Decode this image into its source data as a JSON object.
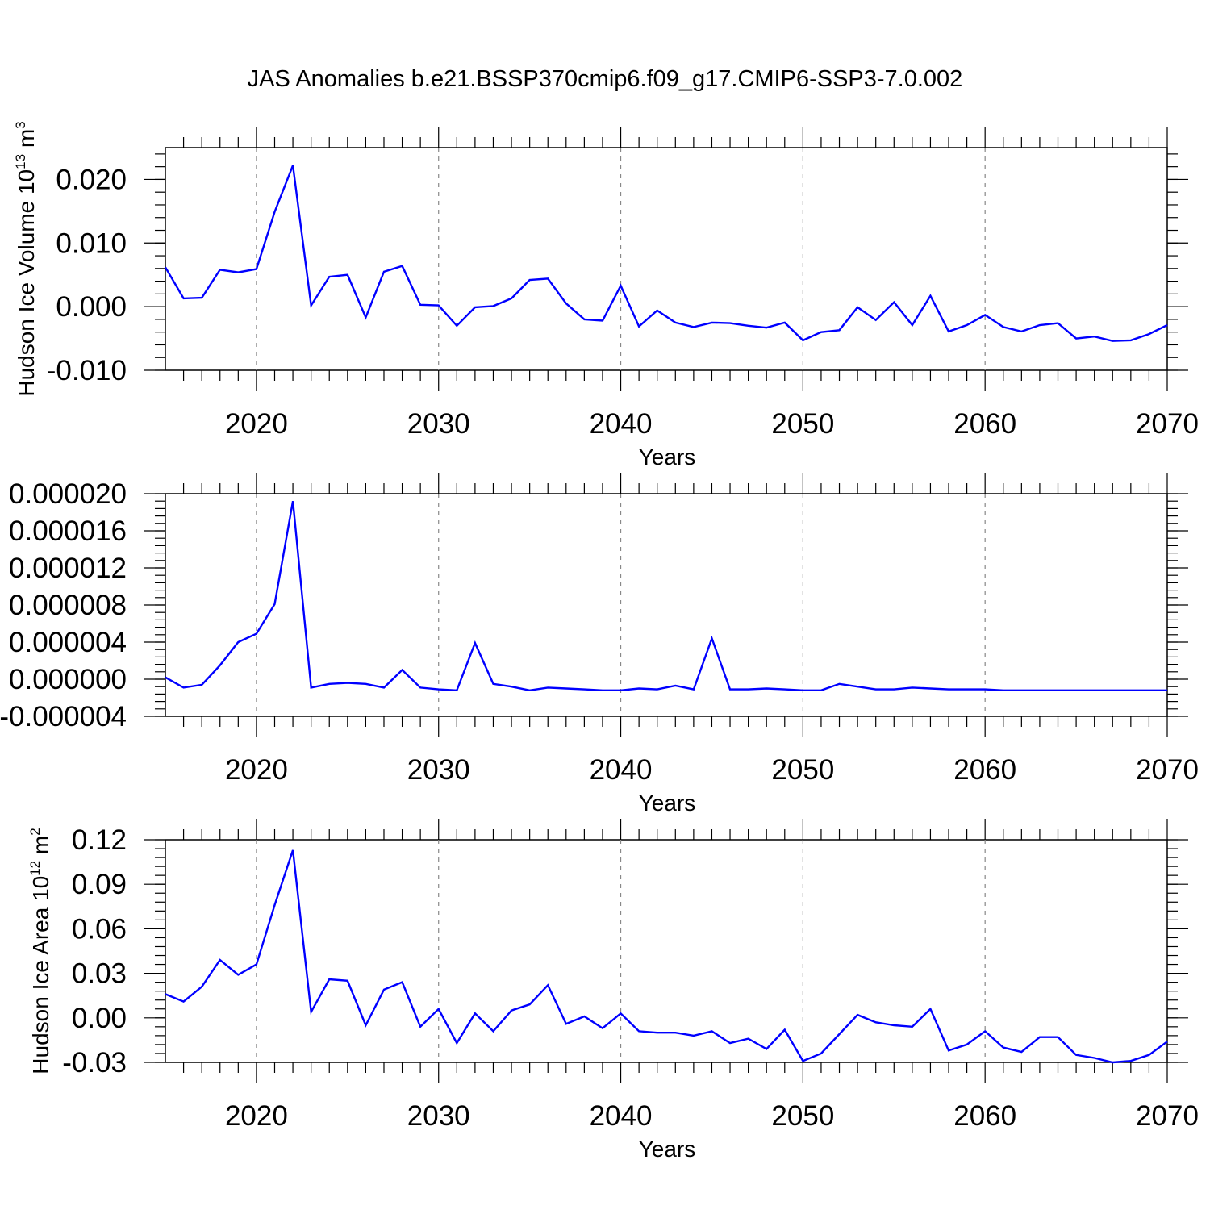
{
  "title": "JAS Anomalies b.e21.BSSP370cmip6.f09_g17.CMIP6-SSP3-7.0.002",
  "colors": {
    "line": "#0000ff",
    "axis": "#000000",
    "grid": "#888888"
  },
  "chart_data": [
    {
      "type": "line",
      "ylabel_main": "Hudson Ice Volume 10",
      "ylabel_sup": "13",
      "ylabel_unit": " m",
      "ylabel_unit_sup": "3",
      "xlabel": "Years",
      "xlim": [
        2015,
        2070
      ],
      "ylim": [
        -0.01,
        0.025
      ],
      "xticks": [
        2020,
        2030,
        2040,
        2050,
        2060,
        2070
      ],
      "xtick_labels": [
        "2020",
        "2030",
        "2040",
        "2050",
        "2060",
        "2070"
      ],
      "yticks": [
        -0.01,
        0.0,
        0.01,
        0.02
      ],
      "ytick_labels": [
        "-0.010",
        "0.000",
        "0.010",
        "0.020"
      ],
      "grid": "vertical dashed at major x ticks",
      "x": [
        2015,
        2016,
        2017,
        2018,
        2019,
        2020,
        2021,
        2022,
        2023,
        2024,
        2025,
        2026,
        2027,
        2028,
        2029,
        2030,
        2031,
        2032,
        2033,
        2034,
        2035,
        2036,
        2037,
        2038,
        2039,
        2040,
        2041,
        2042,
        2043,
        2044,
        2045,
        2046,
        2047,
        2048,
        2049,
        2050,
        2051,
        2052,
        2053,
        2054,
        2055,
        2056,
        2057,
        2058,
        2059,
        2060,
        2061,
        2062,
        2063,
        2064,
        2065,
        2066,
        2067,
        2068,
        2069,
        2070
      ],
      "values": [
        0.0062,
        0.0013,
        0.0014,
        0.0058,
        0.0054,
        0.0059,
        0.0149,
        0.0222,
        0.0002,
        0.0047,
        0.005,
        -0.0017,
        0.0055,
        0.0064,
        0.0003,
        0.0002,
        -0.003,
        -0.0001,
        0.0001,
        0.0013,
        0.0042,
        0.0044,
        0.0005,
        -0.002,
        -0.0022,
        0.0033,
        -0.0031,
        -0.0006,
        -0.0025,
        -0.0032,
        -0.0025,
        -0.0026,
        -0.003,
        -0.0033,
        -0.0025,
        -0.0053,
        -0.004,
        -0.0037,
        -0.0001,
        -0.0021,
        0.0007,
        -0.0029,
        0.0017,
        -0.0039,
        -0.0029,
        -0.0013,
        -0.0032,
        -0.0039,
        -0.0029,
        -0.0026,
        -0.005,
        -0.0047,
        -0.0054,
        -0.0053,
        -0.0043,
        -0.0029
      ]
    },
    {
      "type": "line",
      "xlabel": "Years",
      "xlim": [
        2015,
        2070
      ],
      "ylim": [
        -4e-06,
        2e-05
      ],
      "xticks": [
        2020,
        2030,
        2040,
        2050,
        2060,
        2070
      ],
      "xtick_labels": [
        "2020",
        "2030",
        "2040",
        "2050",
        "2060",
        "2070"
      ],
      "yticks": [
        -4e-06,
        0.0,
        4e-06,
        8e-06,
        1.2e-05,
        1.6e-05,
        2e-05
      ],
      "ytick_labels": [
        "-0.000004",
        "0.000000",
        "0.000004",
        "0.000008",
        "0.000012",
        "0.000016",
        "0.000020"
      ],
      "grid": "vertical dashed at major x ticks",
      "x": [
        2015,
        2016,
        2017,
        2018,
        2019,
        2020,
        2021,
        2022,
        2023,
        2024,
        2025,
        2026,
        2027,
        2028,
        2029,
        2030,
        2031,
        2032,
        2033,
        2034,
        2035,
        2036,
        2037,
        2038,
        2039,
        2040,
        2041,
        2042,
        2043,
        2044,
        2045,
        2046,
        2047,
        2048,
        2049,
        2050,
        2051,
        2052,
        2053,
        2054,
        2055,
        2056,
        2057,
        2058,
        2059,
        2060,
        2061,
        2062,
        2063,
        2064,
        2065,
        2066,
        2067,
        2068,
        2069,
        2070
      ],
      "values": [
        2e-07,
        -9e-07,
        -6e-07,
        1.5e-06,
        4e-06,
        4.9e-06,
        8.1e-06,
        1.92e-05,
        -9e-07,
        -5e-07,
        -4e-07,
        -5e-07,
        -9e-07,
        1e-06,
        -9e-07,
        -1.1e-06,
        -1.2e-06,
        3.9e-06,
        -5e-07,
        -8e-07,
        -1.2e-06,
        -9e-07,
        -1e-06,
        -1.1e-06,
        -1.2e-06,
        -1.2e-06,
        -1e-06,
        -1.1e-06,
        -7e-07,
        -1.1e-06,
        4.4e-06,
        -1.1e-06,
        -1.1e-06,
        -1e-06,
        -1.1e-06,
        -1.2e-06,
        -1.2e-06,
        -5e-07,
        -8e-07,
        -1.1e-06,
        -1.1e-06,
        -9e-07,
        -1e-06,
        -1.1e-06,
        -1.1e-06,
        -1.1e-06,
        -1.2e-06,
        -1.2e-06,
        -1.2e-06,
        -1.2e-06,
        -1.2e-06,
        -1.2e-06,
        -1.2e-06,
        -1.2e-06,
        -1.2e-06,
        -1.2e-06
      ]
    },
    {
      "type": "line",
      "ylabel_main": "Hudson Ice Area 10",
      "ylabel_sup": "12",
      "ylabel_unit": " m",
      "ylabel_unit_sup": "2",
      "xlabel": "Years",
      "xlim": [
        2015,
        2070
      ],
      "ylim": [
        -0.03,
        0.12
      ],
      "xticks": [
        2020,
        2030,
        2040,
        2050,
        2060,
        2070
      ],
      "xtick_labels": [
        "2020",
        "2030",
        "2040",
        "2050",
        "2060",
        "2070"
      ],
      "yticks": [
        -0.03,
        0.0,
        0.03,
        0.06,
        0.09,
        0.12
      ],
      "ytick_labels": [
        "-0.03",
        "0.00",
        "0.03",
        "0.06",
        "0.09",
        "0.12"
      ],
      "grid": "vertical dashed at major x ticks",
      "x": [
        2015,
        2016,
        2017,
        2018,
        2019,
        2020,
        2021,
        2022,
        2023,
        2024,
        2025,
        2026,
        2027,
        2028,
        2029,
        2030,
        2031,
        2032,
        2033,
        2034,
        2035,
        2036,
        2037,
        2038,
        2039,
        2040,
        2041,
        2042,
        2043,
        2044,
        2045,
        2046,
        2047,
        2048,
        2049,
        2050,
        2051,
        2052,
        2053,
        2054,
        2055,
        2056,
        2057,
        2058,
        2059,
        2060,
        2061,
        2062,
        2063,
        2064,
        2065,
        2066,
        2067,
        2068,
        2069,
        2070
      ],
      "values": [
        0.016,
        0.011,
        0.021,
        0.039,
        0.029,
        0.036,
        0.076,
        0.113,
        0.004,
        0.026,
        0.025,
        -0.005,
        0.019,
        0.024,
        -0.006,
        0.006,
        -0.017,
        0.003,
        -0.009,
        0.005,
        0.009,
        0.022,
        -0.004,
        0.001,
        -0.007,
        0.003,
        -0.009,
        -0.01,
        -0.01,
        -0.012,
        -0.009,
        -0.017,
        -0.014,
        -0.021,
        -0.008,
        -0.029,
        -0.024,
        -0.011,
        0.002,
        -0.003,
        -0.005,
        -0.006,
        0.006,
        -0.022,
        -0.018,
        -0.009,
        -0.02,
        -0.023,
        -0.013,
        -0.013,
        -0.025,
        -0.027,
        -0.03,
        -0.029,
        -0.025,
        -0.016
      ]
    }
  ]
}
